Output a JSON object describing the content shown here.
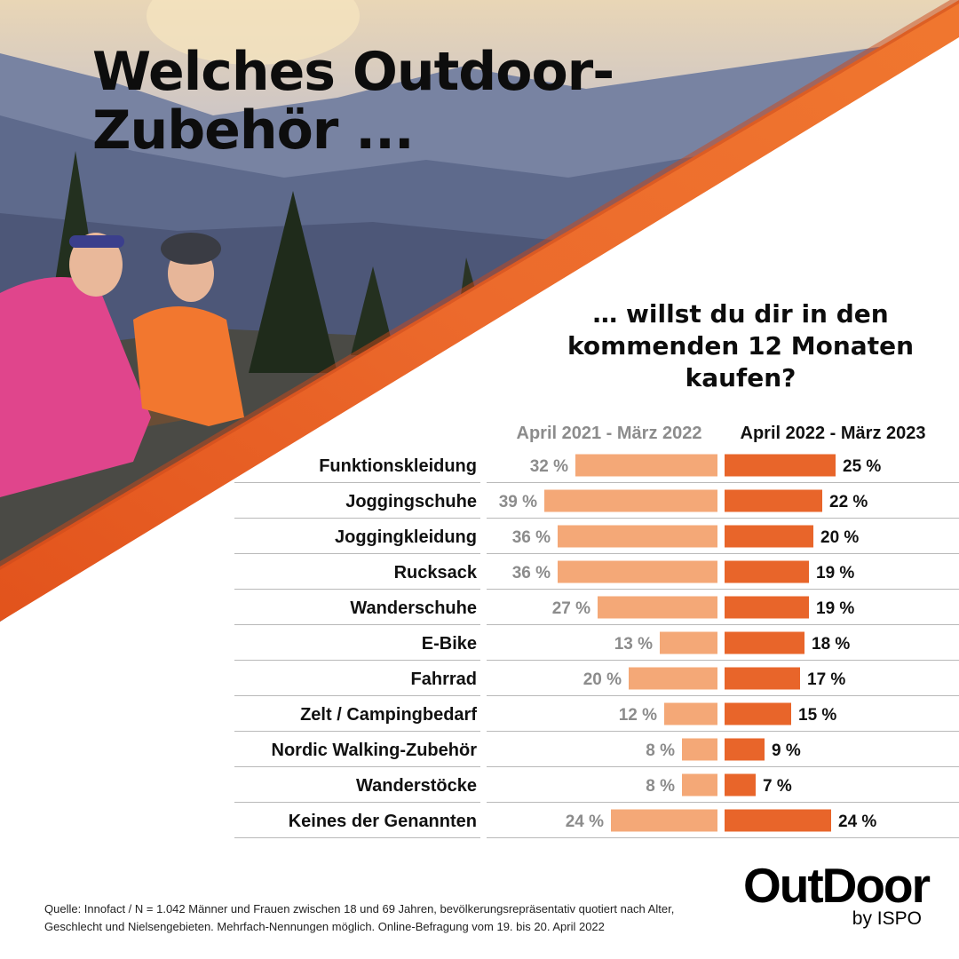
{
  "header": {
    "title_line1": "Welches Outdoor-",
    "title_line2": "Zubehör ...",
    "subtitle_line1": "… willst du dir in den",
    "subtitle_line2": "kommenden 12 Monaten",
    "subtitle_line3": "kaufen?"
  },
  "colors": {
    "accent": "#e8652a",
    "bar_2021": "#f4a877",
    "bar_2022": "#e8652a",
    "label_2021": "#8c8c8c",
    "divider": "#b9b9b9"
  },
  "chart_data": {
    "type": "bar",
    "orientation": "horizontal",
    "layout": "back-to-back",
    "value_unit": "%",
    "categories": [
      "Funktionskleidung",
      "Joggingschuhe",
      "Joggingkleidung",
      "Rucksack",
      "Wanderschuhe",
      "E-Bike",
      "Fahrrad",
      "Zelt / Campingbedarf",
      "Nordic Walking-Zubehör",
      "Wanderstöcke",
      "Keines der Genannten"
    ],
    "series": [
      {
        "name": "April 2021 - März 2022",
        "values": [
          32,
          39,
          36,
          36,
          27,
          13,
          20,
          12,
          8,
          8,
          24
        ],
        "labels": [
          "32 %",
          "39 %",
          "36 %",
          "36 %",
          "27 %",
          "13 %",
          "20 %",
          "12 %",
          "8 %",
          "8 %",
          "24 %"
        ]
      },
      {
        "name": "April 2022 - März 2023",
        "values": [
          25,
          22,
          20,
          19,
          19,
          18,
          17,
          15,
          9,
          7,
          24
        ],
        "labels": [
          "25 %",
          "22 %",
          "20 %",
          "19 %",
          "19 %",
          "18 %",
          "17 %",
          "15 %",
          "9 %",
          "7 %",
          "24 %"
        ]
      }
    ]
  },
  "footer": {
    "source_line1": "Quelle: Innofact  /  N = 1.042 Männer und Frauen zwischen 18 und 69 Jahren, bevölkerungsrepräsentativ quotiert nach Alter,",
    "source_line2": "Geschlecht und Nielsengebieten. Mehrfach-Nennungen möglich. Online-Befragung vom 19. bis 20. April 2022"
  },
  "logo": {
    "main": "OutDoor",
    "sub": "by ISPO"
  }
}
